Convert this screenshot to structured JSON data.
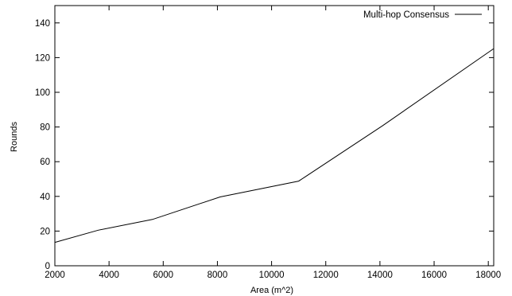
{
  "chart_data": {
    "type": "line",
    "title": "",
    "xlabel": "Area (m^2)",
    "ylabel": "Rounds",
    "xlim": [
      2000,
      18200
    ],
    "ylim": [
      0,
      150
    ],
    "xticks": [
      2000,
      4000,
      6000,
      8000,
      10000,
      12000,
      14000,
      16000,
      18000
    ],
    "yticks": [
      0,
      20,
      40,
      60,
      80,
      100,
      120,
      140
    ],
    "grid": false,
    "legend_position": "top-right",
    "series": [
      {
        "name": "Multi-hop Consensus",
        "color": "#000000",
        "x": [
          2000,
          3600,
          5600,
          8100,
          11000,
          14100,
          18200
        ],
        "y": [
          13.5,
          20.5,
          26.7,
          39.7,
          48.8,
          80.8,
          125.2
        ]
      }
    ]
  }
}
